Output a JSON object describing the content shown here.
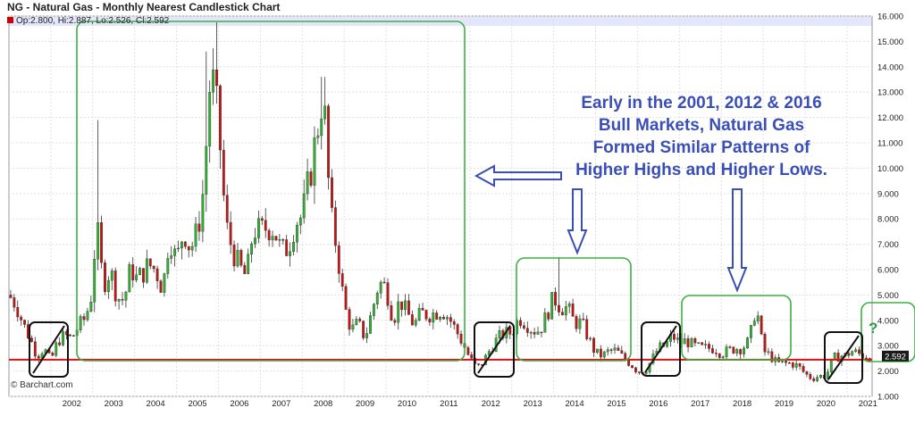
{
  "chart_data": {
    "type": "candlestick",
    "title": "NG - Natural Gas - Monthly Nearest Candlestick Chart",
    "ohlc_readout": "Op:2.800, Hi:2.887, Lo:2.526, Cl:2.592",
    "last_price": "2.592",
    "ylim": [
      1.0,
      16.0
    ],
    "y_ticks": [
      "16.000",
      "15.000",
      "14.000",
      "13.000",
      "12.000",
      "11.000",
      "10.000",
      "9.000",
      "8.000",
      "7.000",
      "6.000",
      "5.000",
      "4.000",
      "3.000",
      "2.000",
      "1.000"
    ],
    "x_ticks": [
      "2002",
      "2003",
      "2004",
      "2005",
      "2006",
      "2007",
      "2008",
      "2009",
      "2010",
      "2011",
      "2012",
      "2013",
      "2014",
      "2015",
      "2016",
      "2017",
      "2018",
      "2019",
      "2020",
      "2021"
    ],
    "support_line": 2.45,
    "credit": "© Barchart.com",
    "colors": {
      "up": "#2db52d",
      "down": "#cc1111",
      "annotation": "#3a4fb5",
      "box": "#3cb043",
      "support": "#dd1111"
    },
    "monthly_closes": [
      [
        2001,
        5.0
      ],
      [
        2001.17,
        4.6
      ],
      [
        2001.33,
        3.9
      ],
      [
        2001.5,
        3.3
      ],
      [
        2001.67,
        2.6
      ],
      [
        2001.83,
        2.9
      ],
      [
        2002,
        2.4
      ],
      [
        2002.17,
        3.2
      ],
      [
        2002.33,
        3.4
      ],
      [
        2002.5,
        3.3
      ],
      [
        2002.67,
        3.8
      ],
      [
        2002.83,
        4.1
      ],
      [
        2003,
        5.2
      ],
      [
        2003.08,
        8.0
      ],
      [
        2003.25,
        5.4
      ],
      [
        2003.42,
        6.0
      ],
      [
        2003.58,
        4.9
      ],
      [
        2003.75,
        4.8
      ],
      [
        2003.92,
        6.2
      ],
      [
        2004,
        5.6
      ],
      [
        2004.17,
        5.8
      ],
      [
        2004.33,
        6.2
      ],
      [
        2004.5,
        6.0
      ],
      [
        2004.67,
        5.2
      ],
      [
        2004.83,
        7.4
      ],
      [
        2005,
        6.3
      ],
      [
        2005.17,
        7.6
      ],
      [
        2005.33,
        6.8
      ],
      [
        2005.5,
        7.5
      ],
      [
        2005.67,
        9.5
      ],
      [
        2005.75,
        12.5
      ],
      [
        2005.83,
        13.8
      ],
      [
        2006,
        11.8
      ],
      [
        2006.17,
        7.8
      ],
      [
        2006.33,
        6.8
      ],
      [
        2006.5,
        6.1
      ],
      [
        2006.67,
        5.7
      ],
      [
        2006.83,
        7.6
      ],
      [
        2007,
        7.5
      ],
      [
        2007.17,
        7.7
      ],
      [
        2007.33,
        7.6
      ],
      [
        2007.5,
        6.7
      ],
      [
        2007.67,
        6.9
      ],
      [
        2007.83,
        7.9
      ],
      [
        2008,
        8.1
      ],
      [
        2008.17,
        9.6
      ],
      [
        2008.33,
        11.2
      ],
      [
        2008.5,
        13.1
      ],
      [
        2008.67,
        8.2
      ],
      [
        2008.83,
        6.8
      ],
      [
        2009,
        4.6
      ],
      [
        2009.17,
        3.6
      ],
      [
        2009.33,
        3.9
      ],
      [
        2009.5,
        3.3
      ],
      [
        2009.67,
        4.4
      ],
      [
        2009.83,
        5.5
      ],
      [
        2010,
        5.3
      ],
      [
        2010.17,
        4.0
      ],
      [
        2010.33,
        4.8
      ],
      [
        2010.5,
        4.3
      ],
      [
        2010.67,
        3.8
      ],
      [
        2010.83,
        4.3
      ],
      [
        2011,
        4.2
      ],
      [
        2011.17,
        4.3
      ],
      [
        2011.33,
        4.4
      ],
      [
        2011.5,
        4.1
      ],
      [
        2011.67,
        3.6
      ],
      [
        2011.83,
        3.1
      ],
      [
        2012,
        2.5
      ],
      [
        2012.17,
        2.1
      ],
      [
        2012.33,
        2.4
      ],
      [
        2012.5,
        2.9
      ],
      [
        2012.67,
        3.3
      ],
      [
        2012.83,
        3.5
      ],
      [
        2013,
        3.5
      ],
      [
        2013.17,
        4.1
      ],
      [
        2013.33,
        3.9
      ],
      [
        2013.5,
        3.6
      ],
      [
        2013.67,
        3.6
      ],
      [
        2013.83,
        4.2
      ],
      [
        2014,
        4.9
      ],
      [
        2014.17,
        4.5
      ],
      [
        2014.33,
        4.5
      ],
      [
        2014.5,
        3.9
      ],
      [
        2014.67,
        3.9
      ],
      [
        2014.83,
        3.3
      ],
      [
        2015,
        2.7
      ],
      [
        2015.17,
        2.6
      ],
      [
        2015.33,
        2.8
      ],
      [
        2015.5,
        2.8
      ],
      [
        2015.67,
        2.5
      ],
      [
        2015.83,
        2.3
      ],
      [
        2016,
        2.0
      ],
      [
        2016.17,
        2.0
      ],
      [
        2016.33,
        2.4
      ],
      [
        2016.5,
        2.9
      ],
      [
        2016.67,
        3.0
      ],
      [
        2016.83,
        3.4
      ],
      [
        2017,
        3.1
      ],
      [
        2017.17,
        3.2
      ],
      [
        2017.33,
        3.0
      ],
      [
        2017.5,
        2.9
      ],
      [
        2017.67,
        2.9
      ],
      [
        2017.83,
        2.9
      ],
      [
        2018,
        2.7
      ],
      [
        2018.17,
        2.8
      ],
      [
        2018.33,
        2.9
      ],
      [
        2018.5,
        2.9
      ],
      [
        2018.67,
        3.2
      ],
      [
        2018.83,
        4.6
      ],
      [
        2019,
        2.8
      ],
      [
        2019.17,
        2.6
      ],
      [
        2019.33,
        2.3
      ],
      [
        2019.5,
        2.3
      ],
      [
        2019.67,
        2.3
      ],
      [
        2019.83,
        2.2
      ],
      [
        2020,
        1.9
      ],
      [
        2020.17,
        1.7
      ],
      [
        2020.33,
        1.8
      ],
      [
        2020.5,
        1.8
      ],
      [
        2020.67,
        2.5
      ],
      [
        2020.83,
        2.6
      ],
      [
        2021,
        2.6
      ],
      [
        2021.08,
        2.8
      ],
      [
        2021.25,
        2.7
      ],
      [
        2021.42,
        2.6
      ]
    ]
  },
  "annotation": {
    "lines": [
      "Early in the 2001, 2012 & 2016",
      "Bull Markets, Natural Gas",
      "Formed Similar Patterns of",
      "Higher Highs and Higher Lows."
    ],
    "question_mark": "?"
  }
}
